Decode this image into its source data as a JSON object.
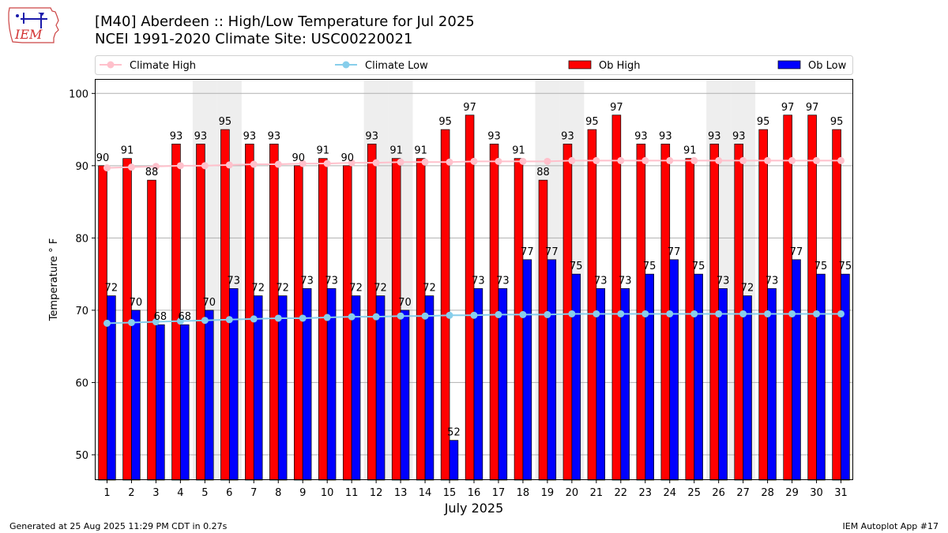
{
  "logo": {
    "text": "IEM"
  },
  "title": "[M40] Aberdeen :: High/Low Temperature for Jul 2025",
  "subtitle": "NCEI 1991-2020 Climate Site: USC00220021",
  "footer": {
    "left": "Generated at 25 Aug 2025 11:29 PM CDT in 0.27s",
    "right": "IEM Autoplot App #17"
  },
  "colors": {
    "ob_high": "#ff0000",
    "ob_low": "#0000ff",
    "climate_high": "#ffc0cb",
    "climate_low": "#87ceeb",
    "weekend_shade": "#eeeeee",
    "grid": "#b0b0b0"
  },
  "chart_data": {
    "type": "bar",
    "xlabel": "July 2025",
    "ylabel": "Temperature ° F",
    "ylim": [
      46.5,
      102
    ],
    "yticks": [
      50,
      60,
      70,
      80,
      90,
      100
    ],
    "grid": "horizontal",
    "legend_position": "top",
    "categories": [
      "1",
      "2",
      "3",
      "4",
      "5",
      "6",
      "7",
      "8",
      "9",
      "10",
      "11",
      "12",
      "13",
      "14",
      "15",
      "16",
      "17",
      "18",
      "19",
      "20",
      "21",
      "22",
      "23",
      "24",
      "25",
      "26",
      "27",
      "28",
      "29",
      "30",
      "31"
    ],
    "shaded_days": [
      5,
      6,
      12,
      13,
      19,
      20,
      26,
      27
    ],
    "series": [
      {
        "name": "Ob High",
        "kind": "bar",
        "values": [
          90,
          91,
          88,
          93,
          93,
          95,
          93,
          93,
          90,
          91,
          90,
          93,
          91,
          91,
          95,
          97,
          93,
          91,
          88,
          93,
          95,
          97,
          93,
          93,
          91,
          93,
          93,
          95,
          97,
          97,
          95
        ]
      },
      {
        "name": "Ob Low",
        "kind": "bar",
        "values": [
          72,
          70,
          68,
          68,
          70,
          73,
          72,
          72,
          73,
          73,
          72,
          72,
          70,
          72,
          52,
          73,
          73,
          77,
          77,
          75,
          73,
          73,
          75,
          77,
          75,
          73,
          72,
          73,
          77,
          75,
          75
        ]
      },
      {
        "name": "Climate High",
        "kind": "line",
        "values": [
          89.7,
          89.8,
          89.9,
          90.0,
          90.0,
          90.1,
          90.2,
          90.2,
          90.3,
          90.3,
          90.4,
          90.4,
          90.5,
          90.5,
          90.5,
          90.6,
          90.6,
          90.6,
          90.6,
          90.7,
          90.7,
          90.7,
          90.7,
          90.7,
          90.7,
          90.7,
          90.7,
          90.7,
          90.7,
          90.7,
          90.7
        ]
      },
      {
        "name": "Climate Low",
        "kind": "line",
        "values": [
          68.2,
          68.3,
          68.4,
          68.5,
          68.6,
          68.7,
          68.8,
          68.9,
          68.9,
          69.0,
          69.1,
          69.1,
          69.2,
          69.2,
          69.3,
          69.3,
          69.4,
          69.4,
          69.4,
          69.5,
          69.5,
          69.5,
          69.5,
          69.5,
          69.5,
          69.5,
          69.5,
          69.5,
          69.5,
          69.5,
          69.5
        ]
      }
    ]
  }
}
